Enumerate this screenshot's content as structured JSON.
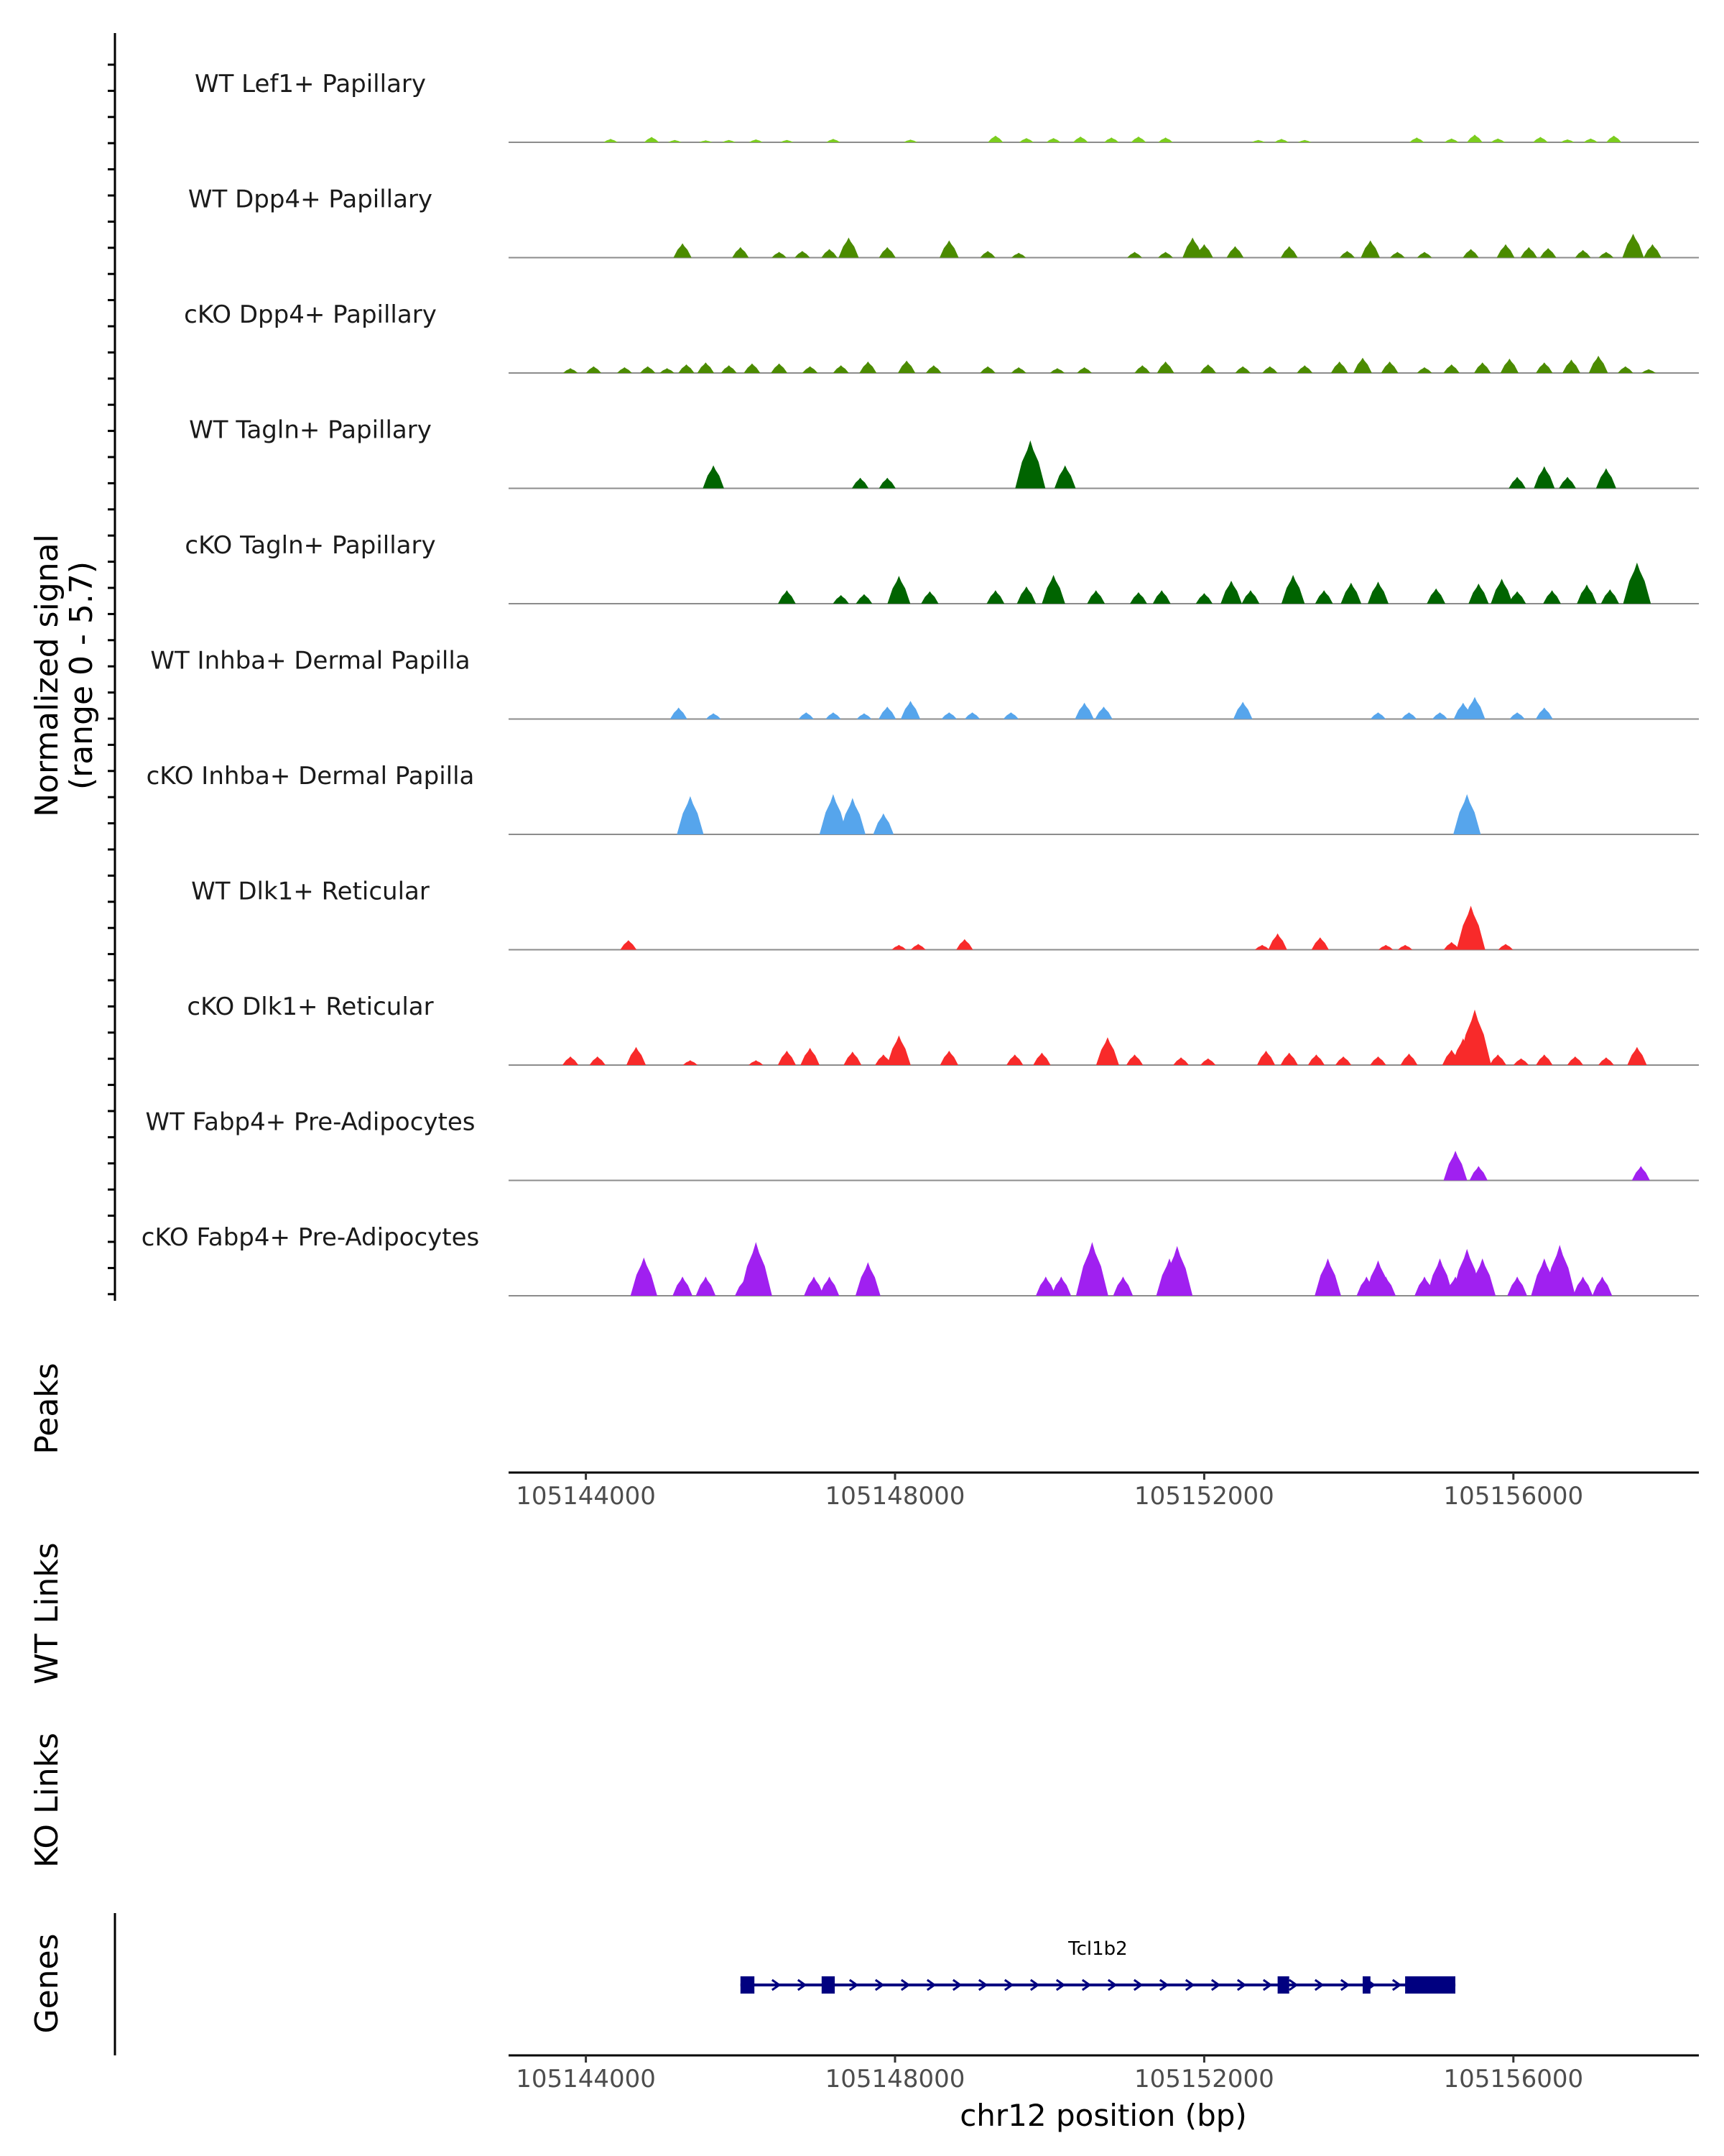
{
  "chart_data": {
    "type": "area",
    "title": "",
    "chromosome": "chr12",
    "xlabel": "chr12 position (bp)",
    "ylabel": "Normalized signal",
    "ylabel_range": "(range 0 - 5.7)",
    "ylim": [
      0,
      5.7
    ],
    "xlim": [
      105143000,
      105158400
    ],
    "xticks": [
      105144000,
      105148000,
      105152000,
      105156000
    ],
    "xtick_labels": [
      "105144000",
      "105148000",
      "105152000",
      "105156000"
    ],
    "panels": {
      "peaks": "Peaks",
      "wt_links": "WT Links",
      "ko_links": "KO Links",
      "genes": "Genes"
    },
    "series": [
      {
        "name": "WT Lef1+ Papillary",
        "color": "#7CCD1F",
        "peaks": [
          [
            105144320,
            0.18
          ],
          [
            105144850,
            0.28
          ],
          [
            105145150,
            0.12
          ],
          [
            105145550,
            0.1
          ],
          [
            105145850,
            0.12
          ],
          [
            105146200,
            0.15
          ],
          [
            105146600,
            0.12
          ],
          [
            105147200,
            0.18
          ],
          [
            105148200,
            0.14
          ],
          [
            105149300,
            0.35
          ],
          [
            105149700,
            0.22
          ],
          [
            105150050,
            0.22
          ],
          [
            105150400,
            0.3
          ],
          [
            105150800,
            0.25
          ],
          [
            105151150,
            0.3
          ],
          [
            105151500,
            0.25
          ],
          [
            105152700,
            0.12
          ],
          [
            105153000,
            0.18
          ],
          [
            105153300,
            0.12
          ],
          [
            105154750,
            0.25
          ],
          [
            105155200,
            0.2
          ],
          [
            105155500,
            0.4
          ],
          [
            105155800,
            0.2
          ],
          [
            105156350,
            0.28
          ],
          [
            105156700,
            0.15
          ],
          [
            105157000,
            0.2
          ],
          [
            105157300,
            0.35
          ]
        ]
      },
      {
        "name": "WT Dpp4+ Papillary",
        "color": "#4B8B00",
        "peaks": [
          [
            105145250,
            0.75
          ],
          [
            105146000,
            0.55
          ],
          [
            105146500,
            0.3
          ],
          [
            105146800,
            0.35
          ],
          [
            105147150,
            0.45
          ],
          [
            105147400,
            1.05
          ],
          [
            105147900,
            0.55
          ],
          [
            105148700,
            0.9
          ],
          [
            105149200,
            0.35
          ],
          [
            105149600,
            0.25
          ],
          [
            105151100,
            0.3
          ],
          [
            105151500,
            0.3
          ],
          [
            105151850,
            1.05
          ],
          [
            105152000,
            0.7
          ],
          [
            105152400,
            0.6
          ],
          [
            105153100,
            0.6
          ],
          [
            105153850,
            0.35
          ],
          [
            105154150,
            0.9
          ],
          [
            105154500,
            0.3
          ],
          [
            105154850,
            0.3
          ],
          [
            105155450,
            0.45
          ],
          [
            105155900,
            0.7
          ],
          [
            105156200,
            0.55
          ],
          [
            105156450,
            0.5
          ],
          [
            105156900,
            0.4
          ],
          [
            105157200,
            0.3
          ],
          [
            105157550,
            1.25
          ],
          [
            105157800,
            0.7
          ]
        ]
      },
      {
        "name": "cKO Dpp4+ Papillary",
        "color": "#4B8B00",
        "peaks": [
          [
            105143800,
            0.25
          ],
          [
            105144100,
            0.35
          ],
          [
            105144500,
            0.3
          ],
          [
            105144800,
            0.35
          ],
          [
            105145050,
            0.25
          ],
          [
            105145300,
            0.45
          ],
          [
            105145550,
            0.55
          ],
          [
            105145850,
            0.4
          ],
          [
            105146150,
            0.5
          ],
          [
            105146500,
            0.5
          ],
          [
            105146900,
            0.35
          ],
          [
            105147300,
            0.4
          ],
          [
            105147650,
            0.6
          ],
          [
            105148150,
            0.65
          ],
          [
            105148500,
            0.4
          ],
          [
            105149200,
            0.35
          ],
          [
            105149600,
            0.3
          ],
          [
            105150100,
            0.25
          ],
          [
            105150450,
            0.3
          ],
          [
            105151200,
            0.4
          ],
          [
            105151500,
            0.6
          ],
          [
            105152050,
            0.45
          ],
          [
            105152500,
            0.35
          ],
          [
            105152850,
            0.35
          ],
          [
            105153300,
            0.4
          ],
          [
            105153750,
            0.6
          ],
          [
            105154050,
            0.8
          ],
          [
            105154400,
            0.6
          ],
          [
            105154850,
            0.3
          ],
          [
            105155200,
            0.45
          ],
          [
            105155600,
            0.55
          ],
          [
            105155950,
            0.75
          ],
          [
            105156400,
            0.55
          ],
          [
            105156750,
            0.7
          ],
          [
            105157100,
            0.9
          ],
          [
            105157450,
            0.35
          ],
          [
            105157750,
            0.2
          ]
        ]
      },
      {
        "name": "WT Tagln+ Papillary",
        "color": "#006400",
        "peaks": [
          [
            105145650,
            1.2
          ],
          [
            105147550,
            0.55
          ],
          [
            105147900,
            0.55
          ],
          [
            105149750,
            2.5
          ],
          [
            105150200,
            1.2
          ],
          [
            105156050,
            0.6
          ],
          [
            105156400,
            1.15
          ],
          [
            105156700,
            0.6
          ],
          [
            105157200,
            1.05
          ]
        ]
      },
      {
        "name": "cKO Tagln+ Papillary",
        "color": "#006400",
        "peaks": [
          [
            105146600,
            0.7
          ],
          [
            105147300,
            0.45
          ],
          [
            105147600,
            0.5
          ],
          [
            105148050,
            1.45
          ],
          [
            105148450,
            0.65
          ],
          [
            105149300,
            0.7
          ],
          [
            105149700,
            0.9
          ],
          [
            105150050,
            1.5
          ],
          [
            105150600,
            0.7
          ],
          [
            105151150,
            0.6
          ],
          [
            105151450,
            0.7
          ],
          [
            105152000,
            0.55
          ],
          [
            105152350,
            1.2
          ],
          [
            105152600,
            0.7
          ],
          [
            105153150,
            1.5
          ],
          [
            105153550,
            0.7
          ],
          [
            105153900,
            1.1
          ],
          [
            105154250,
            1.15
          ],
          [
            105155000,
            0.8
          ],
          [
            105155550,
            1.05
          ],
          [
            105155850,
            1.3
          ],
          [
            105156050,
            0.65
          ],
          [
            105156500,
            0.7
          ],
          [
            105156950,
            1.0
          ],
          [
            105157250,
            0.75
          ],
          [
            105157600,
            2.15
          ]
        ]
      },
      {
        "name": "WT Inhba+ Dermal Papilla",
        "color": "#56A5EC",
        "peaks": [
          [
            105145200,
            0.6
          ],
          [
            105145650,
            0.3
          ],
          [
            105146850,
            0.35
          ],
          [
            105147200,
            0.35
          ],
          [
            105147600,
            0.3
          ],
          [
            105147900,
            0.65
          ],
          [
            105148200,
            0.95
          ],
          [
            105148700,
            0.35
          ],
          [
            105149000,
            0.35
          ],
          [
            105149500,
            0.35
          ],
          [
            105150450,
            0.85
          ],
          [
            105150700,
            0.65
          ],
          [
            105152500,
            0.9
          ],
          [
            105154250,
            0.35
          ],
          [
            105154650,
            0.35
          ],
          [
            105155050,
            0.35
          ],
          [
            105155350,
            0.85
          ],
          [
            105155500,
            1.15
          ],
          [
            105156050,
            0.35
          ],
          [
            105156400,
            0.6
          ]
        ]
      },
      {
        "name": "cKO Inhba+ Dermal Papilla",
        "color": "#56A5EC",
        "peaks": [
          [
            105145350,
            2.0
          ],
          [
            105147200,
            2.1
          ],
          [
            105147450,
            1.9
          ],
          [
            105147850,
            1.1
          ],
          [
            105155400,
            2.1
          ]
        ]
      },
      {
        "name": "WT Dlk1+ Reticular",
        "color": "#F82A2A",
        "peaks": [
          [
            105144550,
            0.5
          ],
          [
            105148050,
            0.25
          ],
          [
            105148300,
            0.3
          ],
          [
            105148900,
            0.55
          ],
          [
            105152750,
            0.25
          ],
          [
            105152950,
            0.85
          ],
          [
            105153500,
            0.65
          ],
          [
            105154350,
            0.25
          ],
          [
            105154600,
            0.25
          ],
          [
            105155200,
            0.4
          ],
          [
            105155450,
            2.3
          ],
          [
            105155900,
            0.3
          ]
        ]
      },
      {
        "name": "cKO Dlk1+ Reticular",
        "color": "#F82A2A",
        "peaks": [
          [
            105143800,
            0.45
          ],
          [
            105144150,
            0.45
          ],
          [
            105144650,
            0.95
          ],
          [
            105145350,
            0.25
          ],
          [
            105146200,
            0.25
          ],
          [
            105146600,
            0.75
          ],
          [
            105146900,
            0.9
          ],
          [
            105147450,
            0.7
          ],
          [
            105147850,
            0.55
          ],
          [
            105148050,
            1.55
          ],
          [
            105148700,
            0.75
          ],
          [
            105149550,
            0.55
          ],
          [
            105149900,
            0.65
          ],
          [
            105150750,
            1.45
          ],
          [
            105151100,
            0.55
          ],
          [
            105151700,
            0.4
          ],
          [
            105152050,
            0.35
          ],
          [
            105152800,
            0.75
          ],
          [
            105153100,
            0.65
          ],
          [
            105153450,
            0.55
          ],
          [
            105153800,
            0.45
          ],
          [
            105154250,
            0.45
          ],
          [
            105154650,
            0.6
          ],
          [
            105155200,
            0.8
          ],
          [
            105155350,
            1.4
          ],
          [
            105155500,
            2.9
          ],
          [
            105155800,
            0.55
          ],
          [
            105156100,
            0.35
          ],
          [
            105156400,
            0.55
          ],
          [
            105156800,
            0.45
          ],
          [
            105157200,
            0.4
          ],
          [
            105157600,
            0.95
          ]
        ]
      },
      {
        "name": "WT Fabp4+ Pre-Adipocytes",
        "color": "#A020F0",
        "peaks": [
          [
            105155250,
            1.55
          ],
          [
            105155550,
            0.75
          ],
          [
            105157650,
            0.75
          ]
        ]
      },
      {
        "name": "cKO Fabp4+ Pre-Adipocytes",
        "color": "#A020F0",
        "peaks": [
          [
            105144750,
            2.0
          ],
          [
            105145250,
            1.0
          ],
          [
            105145550,
            1.0
          ],
          [
            105146050,
            0.85
          ],
          [
            105146200,
            2.8
          ],
          [
            105146950,
            1.0
          ],
          [
            105147150,
            1.0
          ],
          [
            105147650,
            1.75
          ],
          [
            105149950,
            1.0
          ],
          [
            105150150,
            1.0
          ],
          [
            105150550,
            2.8
          ],
          [
            105150950,
            1.0
          ],
          [
            105151550,
            1.95
          ],
          [
            105151650,
            2.6
          ],
          [
            105153600,
            1.95
          ],
          [
            105154100,
            1.0
          ],
          [
            105154250,
            1.85
          ],
          [
            105154350,
            1.0
          ],
          [
            105154850,
            1.0
          ],
          [
            105155050,
            1.95
          ],
          [
            105155250,
            1.0
          ],
          [
            105155400,
            2.45
          ],
          [
            105155600,
            1.95
          ],
          [
            105156050,
            1.0
          ],
          [
            105156400,
            1.95
          ],
          [
            105156600,
            2.65
          ],
          [
            105156900,
            1.0
          ],
          [
            105157150,
            1.0
          ]
        ]
      }
    ],
    "gene": {
      "name": "Tcl1b2",
      "strand": "+",
      "start": 105146000,
      "end": 105155250,
      "exons": [
        [
          105146000,
          105146180
        ],
        [
          105147050,
          105147220
        ],
        [
          105152950,
          105153100
        ],
        [
          105154050,
          105154150
        ],
        [
          105154600,
          105155250
        ]
      ]
    }
  }
}
